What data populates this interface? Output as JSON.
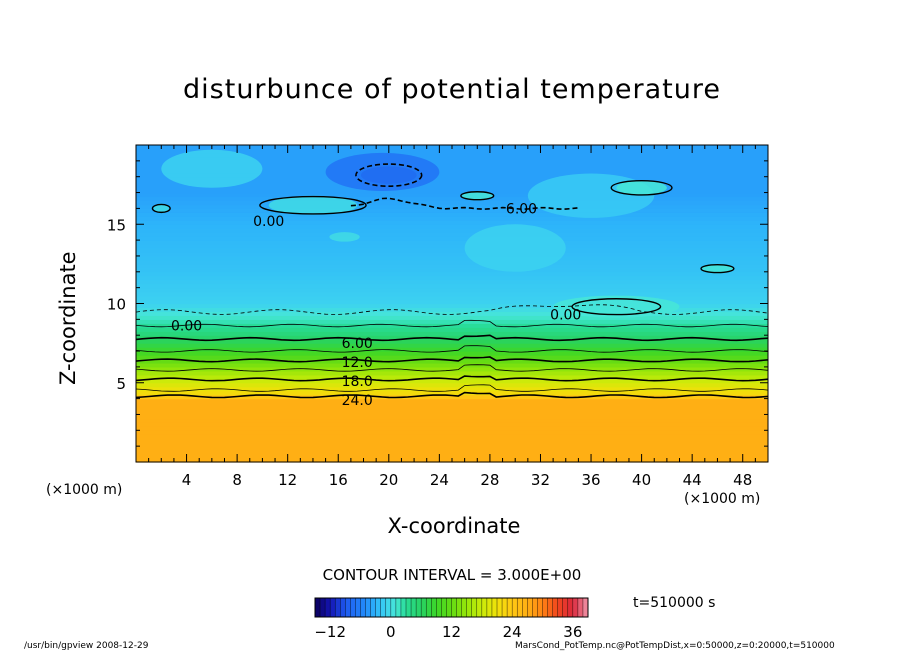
{
  "chart_data": {
    "type": "heatmap",
    "title": "disturbunce of potential temperature",
    "xlabel": "X-coordinate",
    "ylabel": "Z-coordinate",
    "x_unit_label": "(×1000 m)",
    "xlim": [
      0,
      50
    ],
    "ylim": [
      0,
      20
    ],
    "x_ticks": [
      4,
      8,
      12,
      16,
      20,
      24,
      28,
      32,
      36,
      40,
      44,
      48
    ],
    "y_ticks": [
      5,
      10,
      15
    ],
    "contour_interval_label": "CONTOUR INTERVAL = 3.000E+00",
    "contour_labels": [
      {
        "text": "0.00",
        "x": 10.5,
        "z": 15.2
      },
      {
        "text": "6.00",
        "x": 30.5,
        "z": 16.0
      },
      {
        "text": "0.00",
        "x": 4.0,
        "z": 8.6
      },
      {
        "text": "0.00",
        "x": 34.0,
        "z": 9.3
      },
      {
        "text": "6.00",
        "x": 17.5,
        "z": 7.5
      },
      {
        "text": "12.0",
        "x": 17.5,
        "z": 6.3
      },
      {
        "text": "18.0",
        "x": 17.5,
        "z": 5.1
      },
      {
        "text": "24.0",
        "x": 17.5,
        "z": 3.9
      }
    ],
    "field_profile": [
      {
        "z": 0.0,
        "value": 27
      },
      {
        "z": 3.9,
        "value": 27
      },
      {
        "z": 4.3,
        "value": 22
      },
      {
        "z": 5.0,
        "value": 19
      },
      {
        "z": 6.0,
        "value": 14
      },
      {
        "z": 7.0,
        "value": 9
      },
      {
        "z": 8.0,
        "value": 5
      },
      {
        "z": 8.9,
        "value": 2
      },
      {
        "z": 10.0,
        "value": -1
      },
      {
        "z": 12.0,
        "value": -2
      },
      {
        "z": 15.0,
        "value": -3
      },
      {
        "z": 17.0,
        "value": -4
      },
      {
        "z": 20.0,
        "value": -4
      }
    ],
    "colorbar": {
      "min": -15,
      "max": 39,
      "ticks": [
        -12,
        0,
        12,
        24,
        36
      ],
      "tick_labels": [
        "−12",
        "0",
        "12",
        "24",
        "36"
      ]
    },
    "time_label": "t=510000 s"
  },
  "footer": {
    "left": "/usr/bin/gpview  2008-12-29",
    "right": "MarsCond_PotTemp.nc@PotTempDist,x=0:50000,z=0:20000,t=510000"
  }
}
